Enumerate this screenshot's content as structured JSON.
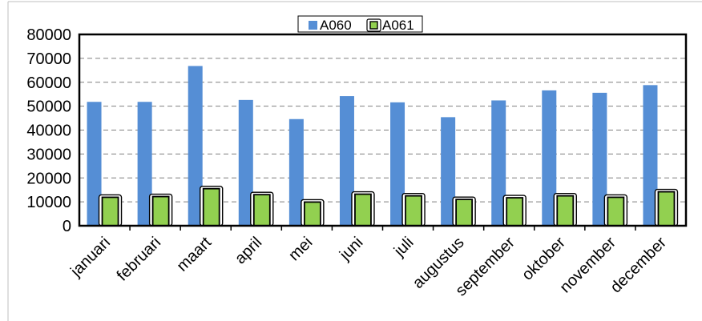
{
  "chart_data": {
    "type": "bar",
    "title": "",
    "xlabel": "",
    "ylabel": "",
    "categories": [
      "januari",
      "februari",
      "maart",
      "april",
      "mei",
      "juni",
      "juli",
      "augustus",
      "september",
      "oktober",
      "november",
      "december"
    ],
    "series": [
      {
        "name": "A060",
        "color": "#558ED5",
        "values": [
          51800,
          51800,
          66800,
          52600,
          44600,
          54200,
          51600,
          45400,
          52400,
          56600,
          55600,
          58800
        ]
      },
      {
        "name": "A061",
        "color": "#92D050",
        "values": [
          11900,
          12200,
          15500,
          13000,
          9900,
          13200,
          12500,
          11000,
          11700,
          12500,
          11900,
          14200
        ]
      }
    ],
    "ylim": [
      0,
      80000
    ],
    "yticks": [
      "0",
      "10000",
      "20000",
      "30000",
      "40000",
      "50000",
      "60000",
      "70000",
      "80000"
    ],
    "grid": true,
    "legend_position": "top"
  }
}
